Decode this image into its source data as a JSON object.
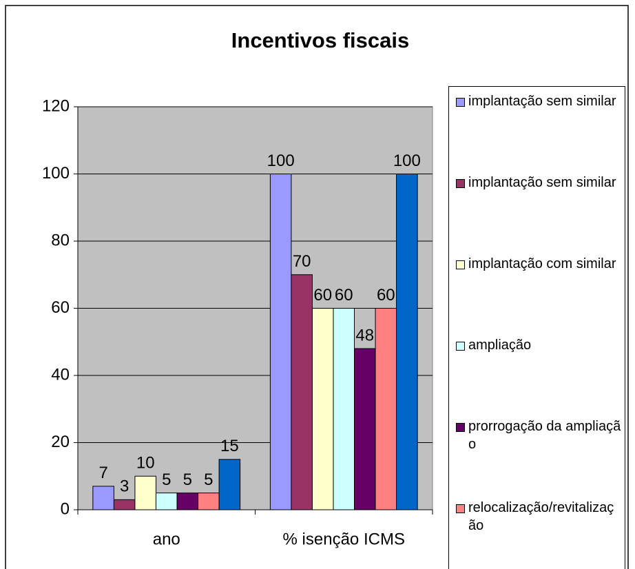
{
  "chart_data": {
    "type": "bar",
    "title": "Incentivos fiscais",
    "categories": [
      "ano",
      "% isenção ICMS"
    ],
    "series": [
      {
        "name": "implantação sem similar",
        "color": "#9999ff",
        "values": [
          7,
          100
        ]
      },
      {
        "name": "implantação sem similar",
        "color": "#993366",
        "values": [
          3,
          70
        ]
      },
      {
        "name": "implantação com similar",
        "color": "#ffffcc",
        "values": [
          10,
          60
        ]
      },
      {
        "name": "ampliação",
        "color": "#ccffff",
        "values": [
          5,
          60
        ]
      },
      {
        "name": "prorrogação da ampliação",
        "color": "#660066",
        "values": [
          5,
          48
        ]
      },
      {
        "name": "relocalização/revitalização",
        "color": "#ff8080",
        "values": [
          5,
          60
        ]
      },
      {
        "color": "#0066cc",
        "values": [
          15,
          100
        ]
      }
    ],
    "ylim": [
      0,
      120
    ],
    "yticks": [
      0,
      20,
      40,
      60,
      80,
      100,
      120
    ],
    "grid": true,
    "legend": "right"
  }
}
